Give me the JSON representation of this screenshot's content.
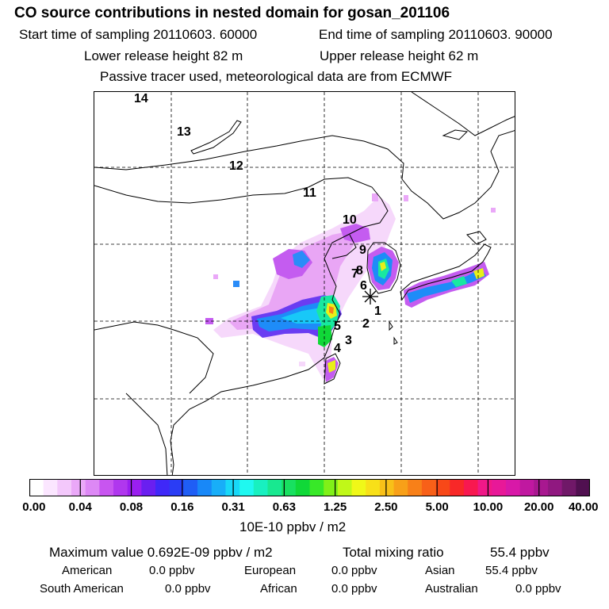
{
  "header": {
    "title": "CO  source contributions in nested domain for gosan_201106",
    "start_label": "Start time of sampling 20110603. 60000",
    "end_label": "End time of sampling 20110603. 90000",
    "lower_label": "Lower release height   82 m",
    "upper_label": "Upper release height   62 m",
    "tracer_note": "Passive tracer used, meteorological data are from ECMWF"
  },
  "map": {
    "trajectory_points": [
      "1",
      "2",
      "3",
      "4",
      "5",
      "6",
      "7",
      "8",
      "9",
      "10",
      "11",
      "12",
      "13",
      "14"
    ],
    "receptor_marker": "star-icon"
  },
  "colorbar": {
    "ticks": [
      "0.00",
      "0.04",
      "0.08",
      "0.16",
      "0.31",
      "0.63",
      "1.25",
      "2.50",
      "5.00",
      "10.00",
      "20.00",
      "40.00"
    ],
    "colors": [
      "#ffffff",
      "#fbe6ff",
      "#f3c8fb",
      "#eaa8f8",
      "#dd88f5",
      "#c855f0",
      "#b037ee",
      "#9a1ff0",
      "#6a1ff0",
      "#3f28f8",
      "#2a3df5",
      "#1f5ef5",
      "#1888f8",
      "#18aef8",
      "#18d8f8",
      "#1ff8f0",
      "#18f0c0",
      "#18e890",
      "#18e060",
      "#10d838",
      "#38e828",
      "#80f018",
      "#c0f818",
      "#f0f818",
      "#f8e018",
      "#f8c018",
      "#f8a018",
      "#f88018",
      "#f86018",
      "#f84818",
      "#f82828",
      "#f81850",
      "#f01888",
      "#e81898",
      "#d818a8",
      "#c018a0",
      "#a81890",
      "#901880",
      "#701868",
      "#501050"
    ],
    "unit": "10E-10 ppbv / m2"
  },
  "stats": {
    "max_label": "Maximum value  0.692E-09 ppbv / m2",
    "total_label": "Total mixing ratio",
    "total_value": "55.4 ppbv",
    "regions": [
      {
        "name": "American",
        "value": "0.0 ppbv"
      },
      {
        "name": "European",
        "value": "0.0 ppbv"
      },
      {
        "name": "Asian",
        "value": "55.4 ppbv"
      },
      {
        "name": "South American",
        "value": "0.0 ppbv"
      },
      {
        "name": "African",
        "value": "0.0 ppbv"
      },
      {
        "name": "Australian",
        "value": "0.0 ppbv"
      }
    ]
  }
}
